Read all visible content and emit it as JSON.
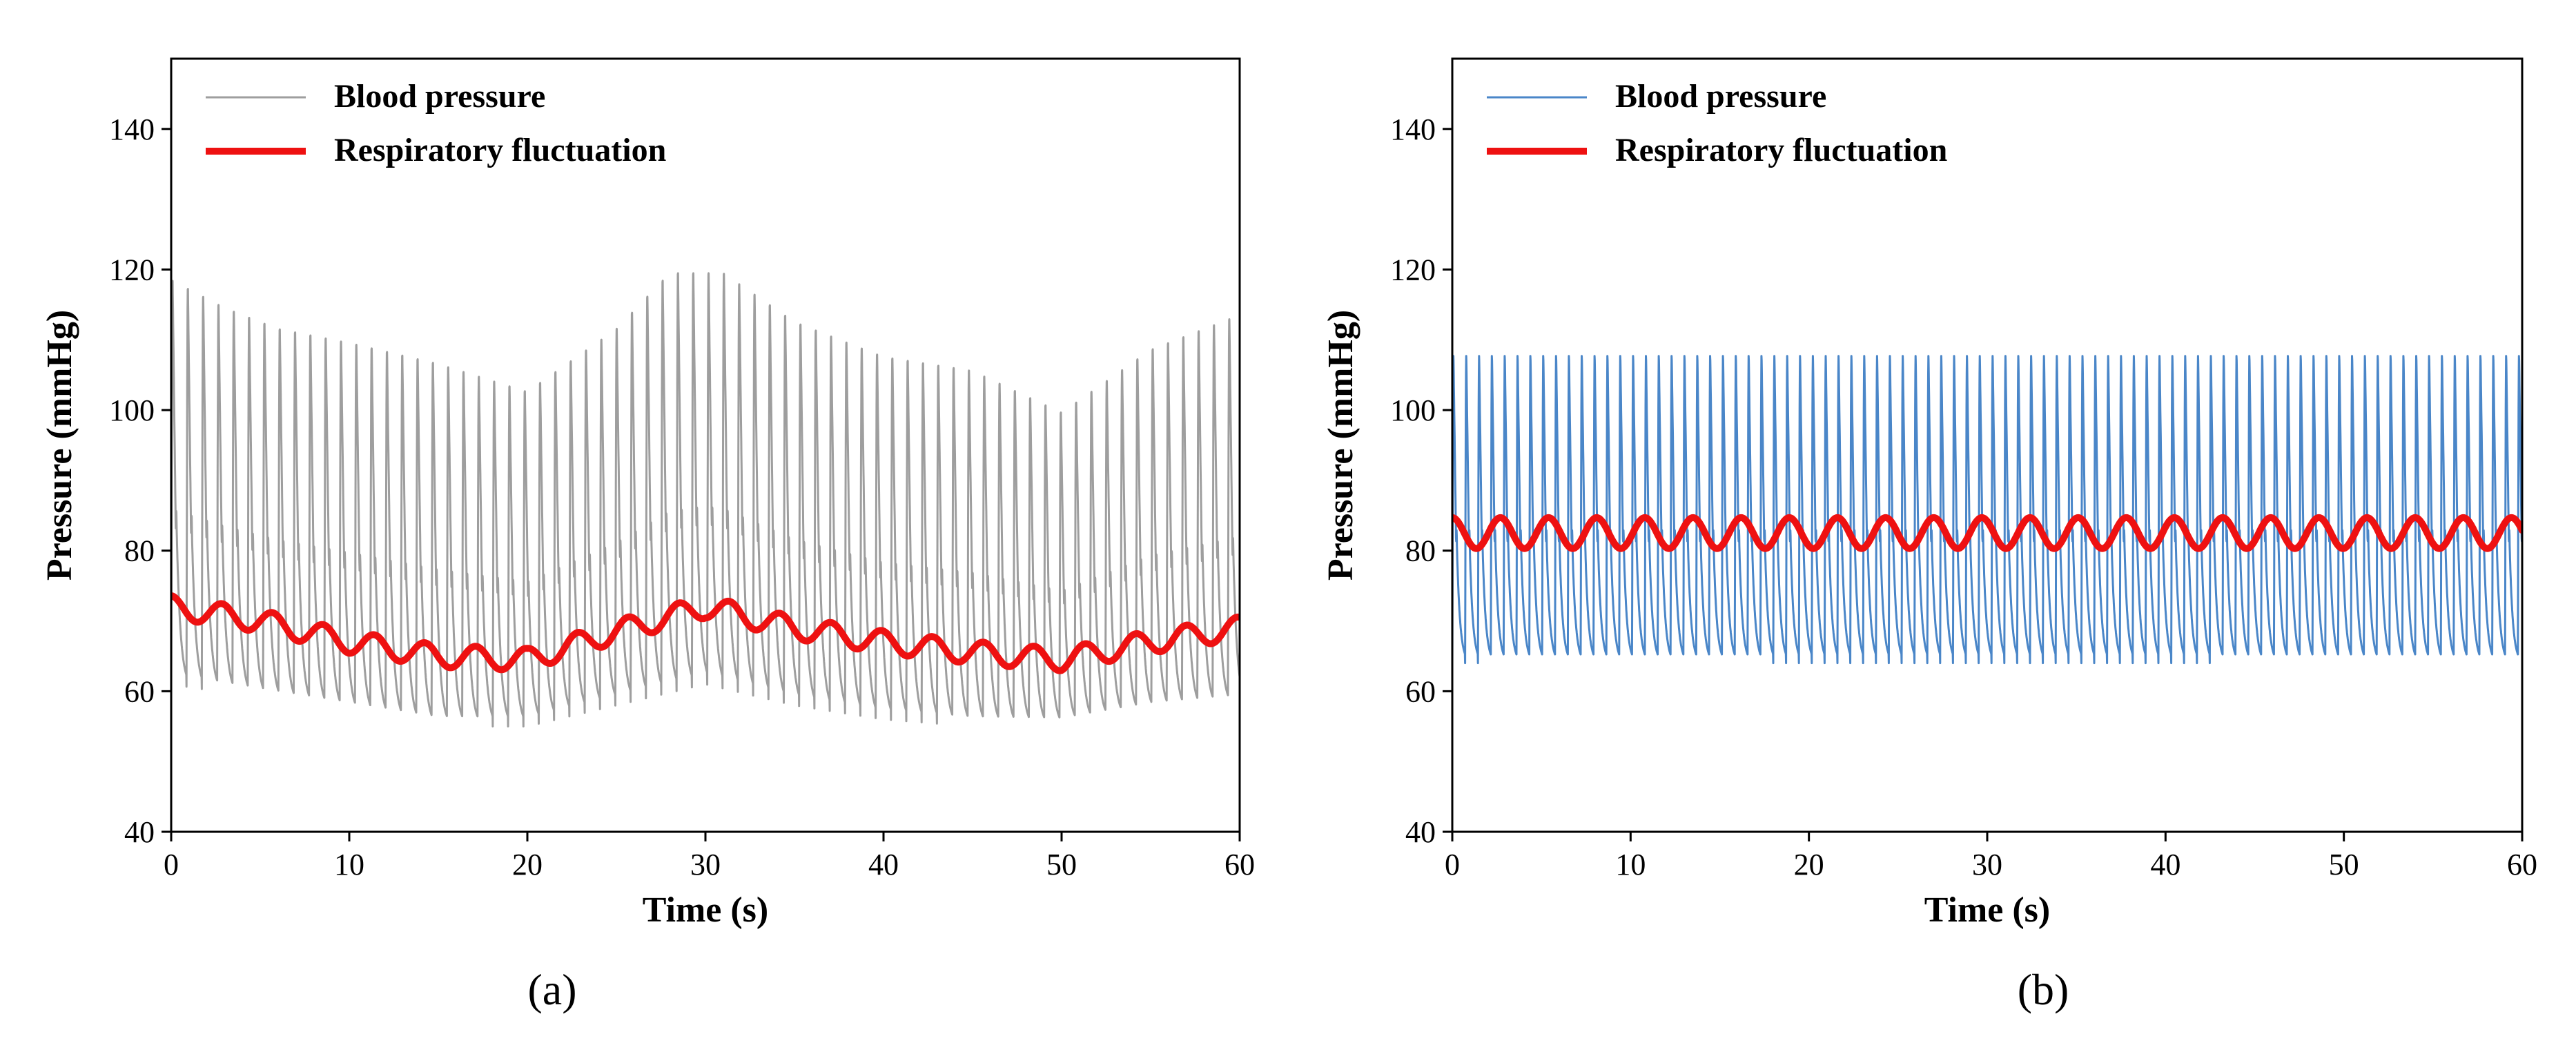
{
  "chart_data": [
    {
      "id": "a",
      "type": "line",
      "panel_label": "(a)",
      "xlabel": "Time (s)",
      "ylabel": "Pressure (mmHg)",
      "xlim": [
        0,
        60
      ],
      "ylim": [
        40,
        150
      ],
      "xticks": [
        "0",
        "10",
        "20",
        "30",
        "40",
        "50",
        "60"
      ],
      "yticks": [
        "40",
        "60",
        "80",
        "100",
        "120",
        "140"
      ],
      "legend_position": "top-left",
      "series": [
        {
          "name": "Blood pressure",
          "color": "#9e9e9e",
          "kind": "pulse",
          "beat_period_s": 0.86,
          "systolic_envelope": {
            "t": [
              0,
              3,
              6,
              10,
              15,
              20,
              25,
              28,
              31,
              35,
              40,
              45,
              50,
              55,
              60
            ],
            "v": [
              119,
              115,
              112,
              110,
              107,
              103,
              112,
              120,
              120,
              113,
              108,
              106,
              100,
              109,
              114
            ]
          },
          "diastolic_envelope": {
            "t": [
              0,
              5,
              10,
              15,
              20,
              25,
              30,
              35,
              40,
              45,
              50,
              55,
              60
            ],
            "v": [
              61,
              59,
              57,
              55,
              55,
              58,
              61,
              58,
              56,
              55,
              55,
              57,
              58
            ]
          }
        },
        {
          "name": "Respiratory fluctuation",
          "color": "#ee1111",
          "kind": "respiratory",
          "breath_period_s": 2.85,
          "amplitude": 1.6,
          "baseline": {
            "t": [
              0,
              5,
              10,
              15,
              20,
              25,
              30,
              35,
              40,
              45,
              50,
              55,
              60
            ],
            "v": [
              72,
              70,
              67,
              65,
              64.5,
              68.5,
              72,
              69,
              67,
              65.5,
              64.5,
              67,
              69
            ]
          }
        }
      ]
    },
    {
      "id": "b",
      "type": "line",
      "panel_label": "(b)",
      "xlabel": "Time (s)",
      "ylabel": "Pressure (mmHg)",
      "xlim": [
        0,
        60
      ],
      "ylim": [
        40,
        150
      ],
      "xticks": [
        "0",
        "10",
        "20",
        "30",
        "40",
        "50",
        "60"
      ],
      "yticks": [
        "40",
        "60",
        "80",
        "100",
        "120",
        "140"
      ],
      "legend_position": "top-left",
      "series": [
        {
          "name": "Blood pressure",
          "color": "#4a86c8",
          "kind": "pulse",
          "beat_period_s": 0.72,
          "systolic_envelope": {
            "t": [
              0,
              60
            ],
            "v": [
              108,
              108
            ]
          },
          "diastolic_envelope": {
            "t": [
              0,
              60
            ],
            "v": [
              64,
              64
            ]
          }
        },
        {
          "name": "Respiratory fluctuation",
          "color": "#ee1111",
          "kind": "respiratory",
          "breath_period_s": 2.7,
          "amplitude": 2.2,
          "baseline": {
            "t": [
              0,
              60
            ],
            "v": [
              82.5,
              82.5
            ]
          }
        }
      ]
    }
  ]
}
